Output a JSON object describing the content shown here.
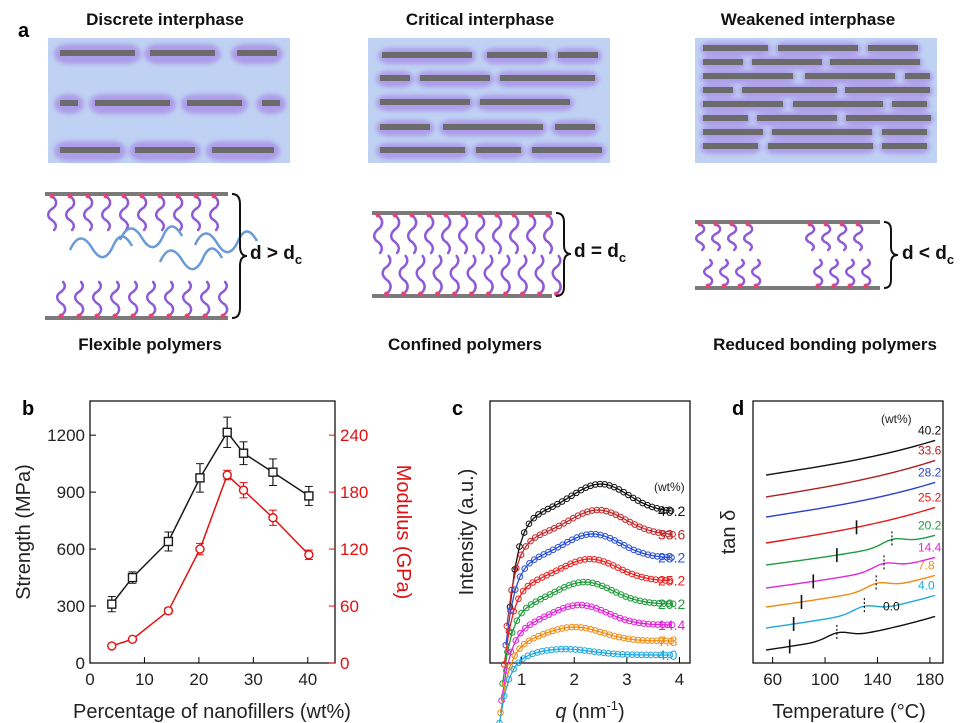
{
  "figure": {
    "panel_a": {
      "letter": "a",
      "columns": [
        {
          "heading": "Discrete interphase",
          "label": "Flexible polymers",
          "relation": "d > d",
          "sub": "c"
        },
        {
          "heading": "Critical interphase",
          "label": "Confined polymers",
          "relation": "d = d",
          "sub": "c"
        },
        {
          "heading": "Weakened interphase",
          "label": "Reduced bonding polymers",
          "relation": "d < d",
          "sub": "c"
        }
      ],
      "colors": {
        "box_bg": "#bfd2f3",
        "platelet": "#6b6b6b",
        "halo": "#a78ae6",
        "chain": "#8e5bd8",
        "free_chain": "#6a9ad8",
        "anchor": "#e0457a"
      }
    }
  },
  "chart_data": [
    {
      "panel": "b",
      "type": "line",
      "xlabel": "Percentage of nanofillers (wt%)",
      "ylabel": "Strength (MPa)",
      "y2label": "Modulus (GPa)",
      "xlim": [
        0,
        45
      ],
      "ylim": [
        0,
        1380
      ],
      "y2lim": [
        0,
        276
      ],
      "xticks": [
        0,
        10,
        20,
        30,
        40
      ],
      "yticks": [
        0,
        300,
        600,
        900,
        1200
      ],
      "y2ticks": [
        0,
        60,
        120,
        180,
        240
      ],
      "series": [
        {
          "name": "",
          "axis": "left",
          "color": "#1a1a1a",
          "marker": "square",
          "x": [
            4.0,
            7.8,
            14.4,
            20.2,
            25.2,
            28.2,
            33.6,
            40.2
          ],
          "values": [
            310,
            450,
            640,
            975,
            1215,
            1105,
            1005,
            880
          ],
          "errors": [
            40,
            30,
            50,
            75,
            80,
            60,
            70,
            50
          ]
        },
        {
          "name": "",
          "axis": "right",
          "color": "#e01010",
          "marker": "circle",
          "x": [
            4.0,
            7.8,
            14.4,
            20.2,
            25.2,
            28.2,
            33.6,
            40.2
          ],
          "values": [
            18,
            25,
            55,
            120,
            198,
            182,
            153,
            114
          ],
          "errors": [
            2,
            2,
            3,
            6,
            5,
            8,
            8,
            5
          ]
        }
      ],
      "grid": false
    },
    {
      "panel": "c",
      "type": "scatter",
      "xlabel_italic": "q",
      "xlabel_unit": " (nm",
      "xlabel_sup": "-1",
      "xlabel_close": ")",
      "ylabel": "Intensity (a.u.)",
      "xlim": [
        0.4,
        4.2
      ],
      "xticks": [
        1,
        2,
        3,
        4
      ],
      "legend_title": "(wt%)",
      "series": [
        {
          "name": "40.2",
          "color": "#111111"
        },
        {
          "name": "33.6",
          "color": "#c0282a"
        },
        {
          "name": "28.2",
          "color": "#2a4fd8"
        },
        {
          "name": "25.2",
          "color": "#e8201e"
        },
        {
          "name": "20.2",
          "color": "#1e9a3a"
        },
        {
          "name": "14.4",
          "color": "#e020d8"
        },
        {
          "name": "7.8",
          "color": "#f08a10"
        },
        {
          "name": "4.0",
          "color": "#22a8e0"
        }
      ]
    },
    {
      "panel": "d",
      "type": "line",
      "xlabel": "Temperature (",
      "xlabel_unit": "°C)",
      "ylabel": "tan δ",
      "xlim": [
        45,
        190
      ],
      "xticks": [
        60,
        100,
        140,
        180
      ],
      "legend_title": "(wt%)",
      "series": [
        {
          "name": "40.2",
          "color": "#111111"
        },
        {
          "name": "33.6",
          "color": "#b02020"
        },
        {
          "name": "28.2",
          "color": "#2a40d0"
        },
        {
          "name": "25.2",
          "color": "#e21a1a"
        },
        {
          "name": "20.2",
          "color": "#1f9c40"
        },
        {
          "name": "14.4",
          "color": "#e028d8"
        },
        {
          "name": "7.8",
          "color": "#f08a10"
        },
        {
          "name": "4.0",
          "color": "#1fa8d8"
        },
        {
          "name": "0.0",
          "color": "#111111"
        }
      ]
    }
  ]
}
